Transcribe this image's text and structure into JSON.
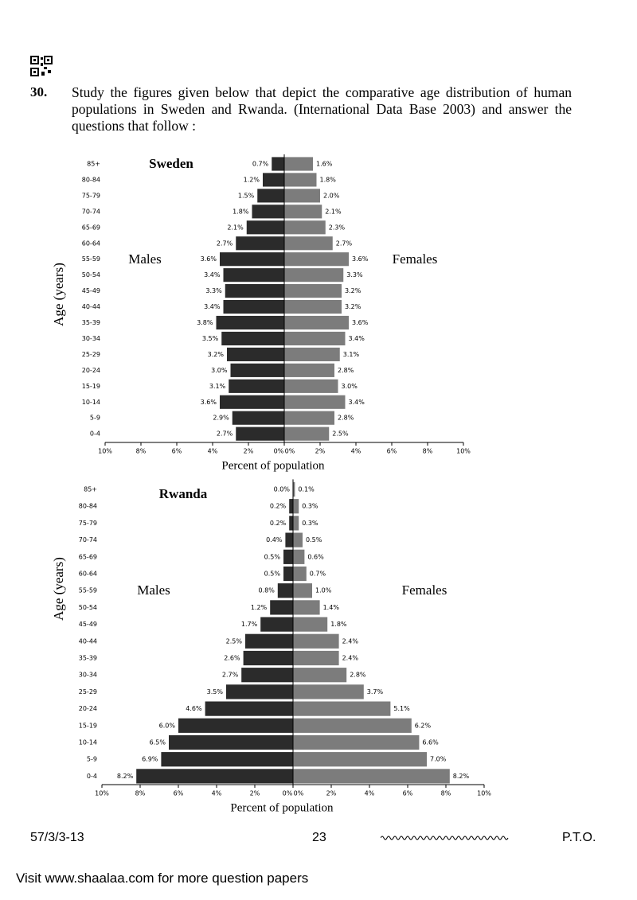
{
  "question": {
    "number": "30.",
    "text": "Study the figures given below that depict the comparative age distribution of human populations in Sweden and Rwanda. (International Data Base 2003) and answer the questions that follow :"
  },
  "chart_data": [
    {
      "type": "population-pyramid",
      "title": "Sweden",
      "y_label": "Age (years)",
      "x_label": "Percent of population",
      "categories": [
        "85+",
        "80-84",
        "75-79",
        "70-74",
        "65-69",
        "60-64",
        "55-59",
        "50-54",
        "45-49",
        "40-44",
        "35-39",
        "30-34",
        "25-29",
        "20-24",
        "15-19",
        "10-14",
        "5-9",
        "0-4"
      ],
      "series": [
        {
          "name": "Males",
          "color": "#2b2b2b",
          "values": [
            0.7,
            1.2,
            1.5,
            1.8,
            2.1,
            2.7,
            3.6,
            3.4,
            3.3,
            3.4,
            3.8,
            3.5,
            3.2,
            3.0,
            3.1,
            3.6,
            2.9,
            2.7
          ],
          "value_labels": [
            "0.7%",
            "1.2%",
            "1.5%",
            "1.8%",
            "2.1%",
            "2.7%",
            "3.6%",
            "3.4%",
            "3.3%",
            "3.4%",
            "3.8%",
            "3.5%",
            "3.2%",
            "3.0%",
            "3.1%",
            "3.6%",
            "2.9%",
            "2.7%"
          ]
        },
        {
          "name": "Females",
          "color": "#7c7c7c",
          "values": [
            1.6,
            1.8,
            2.0,
            2.1,
            2.3,
            2.7,
            3.6,
            3.3,
            3.2,
            3.2,
            3.6,
            3.4,
            3.1,
            2.8,
            3.0,
            3.4,
            2.8,
            2.5
          ],
          "value_labels": [
            "1.6%",
            "1.8%",
            "2.0%",
            "2.1%",
            "2.3%",
            "2.7%",
            "3.6%",
            "3.3%",
            "3.2%",
            "3.2%",
            "3.6%",
            "3.4%",
            "3.1%",
            "2.8%",
            "3.0%",
            "3.4%",
            "2.8%",
            "2.5%"
          ]
        }
      ],
      "xlim": [
        0,
        10
      ],
      "xticks": [
        {
          "value": 0,
          "label": "0%"
        },
        {
          "value": 2,
          "label": "2%"
        },
        {
          "value": 4,
          "label": "4%"
        },
        {
          "value": 6,
          "label": "6%"
        },
        {
          "value": 8,
          "label": "8%"
        },
        {
          "value": 10,
          "label": "10%"
        }
      ]
    },
    {
      "type": "population-pyramid",
      "title": "Rwanda",
      "y_label": "Age (years)",
      "x_label": "Percent of population",
      "categories": [
        "85+",
        "80-84",
        "75-79",
        "70-74",
        "65-69",
        "60-64",
        "55-59",
        "50-54",
        "45-49",
        "40-44",
        "35-39",
        "30-34",
        "25-29",
        "20-24",
        "15-19",
        "10-14",
        "5-9",
        "0-4"
      ],
      "series": [
        {
          "name": "Males",
          "color": "#2b2b2b",
          "values": [
            0.0,
            0.2,
            0.2,
            0.4,
            0.5,
            0.5,
            0.8,
            1.2,
            1.7,
            2.5,
            2.6,
            2.7,
            3.5,
            4.6,
            6.0,
            6.5,
            6.9,
            8.2
          ],
          "value_labels": [
            "0.0%",
            "0.2%",
            "0.2%",
            "0.4%",
            "0.5%",
            "0.5%",
            "0.8%",
            "1.2%",
            "1.7%",
            "2.5%",
            "2.6%",
            "2.7%",
            "3.5%",
            "4.6%",
            "6.0%",
            "6.5%",
            "6.9%",
            "8.2%"
          ]
        },
        {
          "name": "Females",
          "color": "#7c7c7c",
          "values": [
            0.1,
            0.3,
            0.3,
            0.5,
            0.6,
            0.7,
            1.0,
            1.4,
            1.8,
            2.4,
            2.4,
            2.8,
            3.7,
            5.1,
            6.2,
            6.6,
            7.0,
            8.2
          ],
          "value_labels": [
            "0.1%",
            "0.3%",
            "0.3%",
            "0.5%",
            "0.6%",
            "0.7%",
            "1.0%",
            "1.4%",
            "1.8%",
            "2.4%",
            "2.4%",
            "2.8%",
            "3.7%",
            "5.1%",
            "6.2%",
            "6.6%",
            "7.0%",
            "8.2%"
          ]
        }
      ],
      "xlim": [
        0,
        10
      ],
      "xticks": [
        {
          "value": 0,
          "label": "0%"
        },
        {
          "value": 2,
          "label": "2%"
        },
        {
          "value": 4,
          "label": "4%"
        },
        {
          "value": 6,
          "label": "6%"
        },
        {
          "value": 8,
          "label": "8%"
        },
        {
          "value": 10,
          "label": "10%"
        }
      ]
    }
  ],
  "footer": {
    "code": "57/3/3-13",
    "page": "23",
    "pto": "P.T.O."
  },
  "visit": "Visit www.shaalaa.com for more question papers"
}
